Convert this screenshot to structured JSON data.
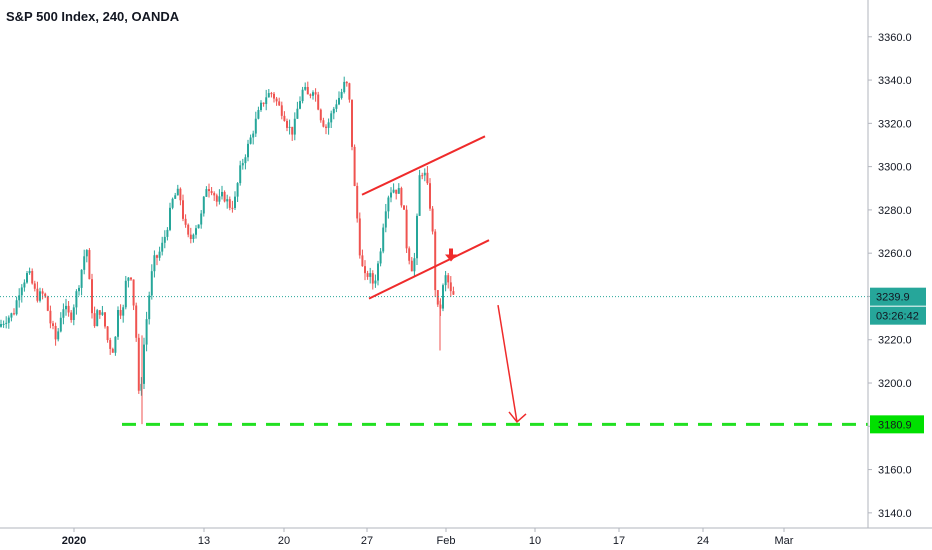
{
  "chart_data": {
    "type": "candlestick",
    "title": "S&P 500 Index, 240, OANDA",
    "y_axis": {
      "ticks": [
        3140,
        3160,
        3180,
        3200,
        3220,
        3240,
        3260,
        3280,
        3300,
        3320,
        3340,
        3360
      ],
      "tick_labels": [
        "3140.0",
        "3160.0",
        "3180.0",
        "3200.0",
        "3220.0",
        "3240.0",
        "3260.0",
        "3280.0",
        "3300.0",
        "3320.0",
        "3340.0",
        "3360.0"
      ],
      "range": [
        3133,
        3377
      ]
    },
    "x_axis": {
      "tick_labels": [
        "2020",
        "13",
        "20",
        "27",
        "Feb",
        "10",
        "17",
        "24",
        "Mar"
      ],
      "bold_labels": [
        "2020"
      ]
    },
    "bull_color": "#26a69a",
    "bear_color": "#ef5350",
    "price_segments": [
      [
        0,
        3226
      ],
      [
        8,
        3230
      ],
      [
        15,
        3232
      ],
      [
        22,
        3245
      ],
      [
        30,
        3251
      ],
      [
        38,
        3240
      ],
      [
        46,
        3241
      ],
      [
        52,
        3228
      ],
      [
        58,
        3219
      ],
      [
        64,
        3236
      ],
      [
        72,
        3230
      ],
      [
        80,
        3245
      ],
      [
        88,
        3264
      ],
      [
        92,
        3240
      ],
      [
        96,
        3225
      ],
      [
        100,
        3235
      ],
      [
        105,
        3230
      ],
      [
        110,
        3218
      ],
      [
        116,
        3215
      ],
      [
        120,
        3238
      ],
      [
        124,
        3230
      ],
      [
        128,
        3249
      ],
      [
        133,
        3250
      ],
      [
        138,
        3220
      ],
      [
        141,
        3188
      ],
      [
        145,
        3215
      ],
      [
        150,
        3238
      ],
      [
        155,
        3256
      ],
      [
        160,
        3259
      ],
      [
        165,
        3265
      ],
      [
        170,
        3275
      ],
      [
        175,
        3286
      ],
      [
        181,
        3288
      ],
      [
        186,
        3273
      ],
      [
        191,
        3265
      ],
      [
        196,
        3272
      ],
      [
        202,
        3275
      ],
      [
        208,
        3291
      ],
      [
        214,
        3290
      ],
      [
        219,
        3283
      ],
      [
        225,
        3287
      ],
      [
        231,
        3282
      ],
      [
        236,
        3283
      ],
      [
        241,
        3297
      ],
      [
        246,
        3305
      ],
      [
        251,
        3311
      ],
      [
        256,
        3319
      ],
      [
        262,
        3327
      ],
      [
        268,
        3333
      ],
      [
        274,
        3334
      ],
      [
        280,
        3328
      ],
      [
        285,
        3325
      ],
      [
        290,
        3318
      ],
      [
        295,
        3316
      ],
      [
        300,
        3329
      ],
      [
        305,
        3336
      ],
      [
        310,
        3332
      ],
      [
        315,
        3337
      ],
      [
        319,
        3330
      ],
      [
        323,
        3322
      ],
      [
        328,
        3318
      ],
      [
        333,
        3324
      ],
      [
        338,
        3330
      ],
      [
        342,
        3333
      ],
      [
        346,
        3338
      ],
      [
        350,
        3337
      ],
      [
        353,
        3315
      ],
      [
        356,
        3291
      ],
      [
        359,
        3275
      ],
      [
        362,
        3258
      ],
      [
        366,
        3248
      ],
      [
        370,
        3251
      ],
      [
        374,
        3246
      ],
      [
        378,
        3250
      ],
      [
        382,
        3262
      ],
      [
        386,
        3279
      ],
      [
        391,
        3289
      ],
      [
        396,
        3290
      ],
      [
        401,
        3288
      ],
      [
        405,
        3281
      ],
      [
        408,
        3264
      ],
      [
        412,
        3256
      ],
      [
        415,
        3251
      ],
      [
        418,
        3270
      ],
      [
        421,
        3295
      ],
      [
        425,
        3299
      ],
      [
        429,
        3290
      ],
      [
        432,
        3281
      ],
      [
        435,
        3264
      ],
      [
        437,
        3242
      ],
      [
        440,
        3232
      ],
      [
        443,
        3237
      ],
      [
        446,
        3250
      ],
      [
        450,
        3246
      ],
      [
        453,
        3240
      ],
      [
        455,
        3239.9
      ]
    ],
    "annotations": {
      "channel_upper_line": [
        [
          362,
          3287
        ],
        [
          485,
          3314
        ]
      ],
      "channel_lower_line": [
        [
          369,
          3239
        ],
        [
          489,
          3266
        ]
      ],
      "target_arrow": {
        "from": [
          498,
          3236
        ],
        "to": [
          517,
          3182
        ]
      },
      "down_marker_at": [
        451,
        3258
      ],
      "target_level": {
        "value": 3180.9,
        "label": "3180.9",
        "color": "#00e000"
      }
    },
    "current_price": {
      "value": 3239.9,
      "label": "3239.9",
      "countdown": "03:26:42",
      "color": "#26a69a"
    }
  }
}
